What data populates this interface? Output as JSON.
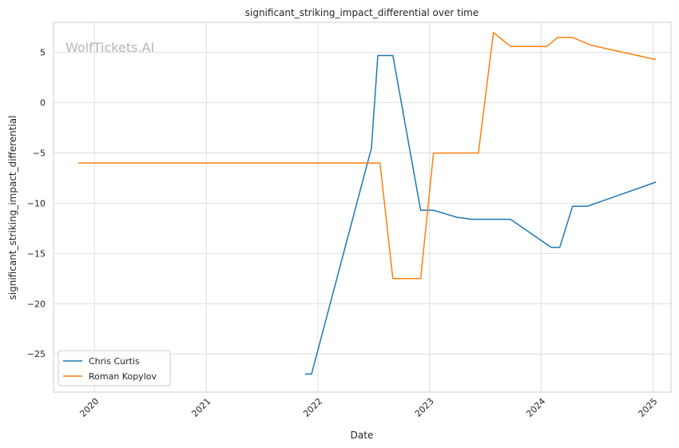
{
  "watermark": "WolfTickets.AI",
  "chart_data": {
    "type": "line",
    "title": "significant_striking_impact_differential over time",
    "xlabel": "Date",
    "ylabel": "significant_striking_impact_differential",
    "x_type": "date",
    "xlim": [
      "2019-08-20",
      "2025-03-01"
    ],
    "ylim": [
      -28.8,
      8.0
    ],
    "x_ticks": [
      "2020-01-01",
      "2021-01-01",
      "2022-01-01",
      "2023-01-01",
      "2024-01-01",
      "2025-01-01"
    ],
    "x_tick_labels": [
      "2020",
      "2021",
      "2022",
      "2023",
      "2024",
      "2025"
    ],
    "y_ticks": [
      -25,
      -20,
      -15,
      -10,
      -5,
      0,
      5
    ],
    "grid": true,
    "legend": "lower-left",
    "series": [
      {
        "name": "Chris Curtis",
        "color": "#1f77b4",
        "points": [
          [
            "2021-11-20",
            -27.0
          ],
          [
            "2021-12-11",
            -27.0
          ],
          [
            "2022-06-25",
            -4.5
          ],
          [
            "2022-07-16",
            4.7
          ],
          [
            "2022-09-03",
            4.7
          ],
          [
            "2022-12-03",
            -10.7
          ],
          [
            "2023-01-14",
            -10.7
          ],
          [
            "2023-04-01",
            -11.4
          ],
          [
            "2023-05-20",
            -11.6
          ],
          [
            "2023-09-23",
            -11.6
          ],
          [
            "2024-02-03",
            -14.4
          ],
          [
            "2024-03-02",
            -14.4
          ],
          [
            "2024-04-13",
            -10.3
          ],
          [
            "2024-06-01",
            -10.3
          ],
          [
            "2025-01-11",
            -7.9
          ]
        ]
      },
      {
        "name": "Roman Kopylov",
        "color": "#ff7f0e",
        "points": [
          [
            "2019-11-09",
            -6.0
          ],
          [
            "2022-07-23",
            -6.0
          ],
          [
            "2022-09-03",
            -17.5
          ],
          [
            "2022-12-03",
            -17.5
          ],
          [
            "2023-01-14",
            -5.0
          ],
          [
            "2023-06-10",
            -5.0
          ],
          [
            "2023-07-29",
            7.0
          ],
          [
            "2023-09-23",
            5.6
          ],
          [
            "2024-01-20",
            5.6
          ],
          [
            "2024-02-24",
            6.5
          ],
          [
            "2024-04-13",
            6.5
          ],
          [
            "2024-06-15",
            5.7
          ],
          [
            "2025-01-11",
            4.3
          ]
        ]
      }
    ]
  }
}
